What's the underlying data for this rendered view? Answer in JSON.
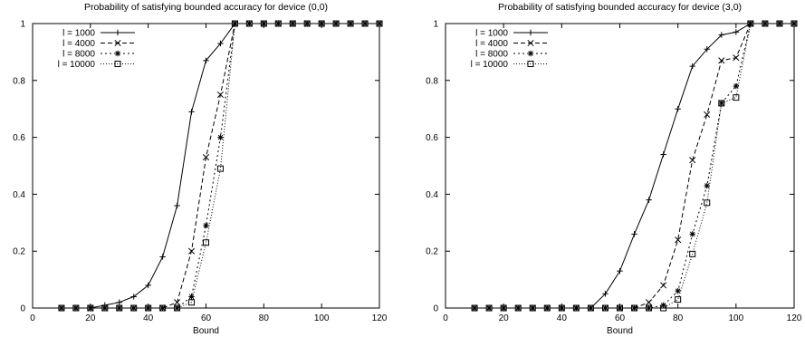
{
  "chart_data": [
    {
      "type": "line",
      "title": "Probability of satisfying bounded accuracy for device (0,0)",
      "xlabel": "Bound",
      "ylabel": "",
      "xlim": [
        0,
        120
      ],
      "ylim": [
        0,
        1
      ],
      "xticks": [
        "0",
        "20",
        "40",
        "60",
        "80",
        "100",
        "120"
      ],
      "yticks": [
        "0",
        "0.2",
        "0.4",
        "0.6",
        "0.8",
        "1"
      ],
      "grid": false,
      "legend": "top-left",
      "x": [
        10,
        15,
        20,
        25,
        30,
        35,
        40,
        45,
        50,
        55,
        60,
        65,
        70,
        75,
        80,
        85,
        90,
        95,
        100,
        105,
        110,
        115,
        120
      ],
      "series": [
        {
          "name": "l = 1000",
          "marker": "plus",
          "dash": "",
          "values": [
            0,
            0,
            0,
            0.01,
            0.02,
            0.04,
            0.08,
            0.18,
            0.36,
            0.69,
            0.87,
            0.93,
            1,
            1,
            1,
            1,
            1,
            1,
            1,
            1,
            1,
            1,
            1
          ]
        },
        {
          "name": "l = 4000",
          "marker": "cross",
          "dash": "5,3",
          "values": [
            0,
            0,
            0,
            0,
            0,
            0,
            0,
            0,
            0.02,
            0.2,
            0.53,
            0.75,
            1,
            1,
            1,
            1,
            1,
            1,
            1,
            1,
            1,
            1,
            1
          ]
        },
        {
          "name": "l = 8000",
          "marker": "star",
          "dash": "2,3",
          "values": [
            0,
            0,
            0,
            0,
            0,
            0,
            0,
            0,
            0,
            0.04,
            0.29,
            0.6,
            1,
            1,
            1,
            1,
            1,
            1,
            1,
            1,
            1,
            1,
            1
          ]
        },
        {
          "name": "l = 10000",
          "marker": "square",
          "dash": "1,2",
          "values": [
            0,
            0,
            0,
            0,
            0,
            0,
            0,
            0,
            0,
            0.02,
            0.23,
            0.49,
            1,
            1,
            1,
            1,
            1,
            1,
            1,
            1,
            1,
            1,
            1
          ]
        }
      ]
    },
    {
      "type": "line",
      "title": "Probability of satisfying bounded accuracy for device (3,0)",
      "xlabel": "Bound",
      "ylabel": "",
      "xlim": [
        0,
        120
      ],
      "ylim": [
        0,
        1
      ],
      "xticks": [
        "0",
        "20",
        "40",
        "60",
        "80",
        "100",
        "120"
      ],
      "yticks": [
        "0",
        "0.2",
        "0.4",
        "0.6",
        "0.8",
        "1"
      ],
      "grid": false,
      "legend": "top-left",
      "x": [
        10,
        15,
        20,
        25,
        30,
        35,
        40,
        45,
        50,
        55,
        60,
        65,
        70,
        75,
        80,
        85,
        90,
        95,
        100,
        105,
        110,
        115,
        120
      ],
      "series": [
        {
          "name": "l = 1000",
          "marker": "plus",
          "dash": "",
          "values": [
            0,
            0,
            0,
            0,
            0,
            0,
            0,
            0,
            0,
            0.05,
            0.13,
            0.26,
            0.38,
            0.54,
            0.7,
            0.85,
            0.91,
            0.96,
            0.97,
            1,
            1,
            1,
            1
          ]
        },
        {
          "name": "l = 4000",
          "marker": "cross",
          "dash": "5,3",
          "values": [
            0,
            0,
            0,
            0,
            0,
            0,
            0,
            0,
            0,
            0,
            0,
            0,
            0.02,
            0.08,
            0.24,
            0.52,
            0.68,
            0.87,
            0.88,
            1,
            1,
            1,
            1
          ]
        },
        {
          "name": "l = 8000",
          "marker": "star",
          "dash": "2,3",
          "values": [
            0,
            0,
            0,
            0,
            0,
            0,
            0,
            0,
            0,
            0,
            0,
            0,
            0,
            0.01,
            0.06,
            0.26,
            0.43,
            0.72,
            0.78,
            1,
            1,
            1,
            1
          ]
        },
        {
          "name": "l = 10000",
          "marker": "square",
          "dash": "1,2",
          "values": [
            0,
            0,
            0,
            0,
            0,
            0,
            0,
            0,
            0,
            0,
            0,
            0,
            0,
            0,
            0.03,
            0.19,
            0.37,
            0.72,
            0.74,
            1,
            1,
            1,
            1
          ]
        }
      ]
    }
  ]
}
